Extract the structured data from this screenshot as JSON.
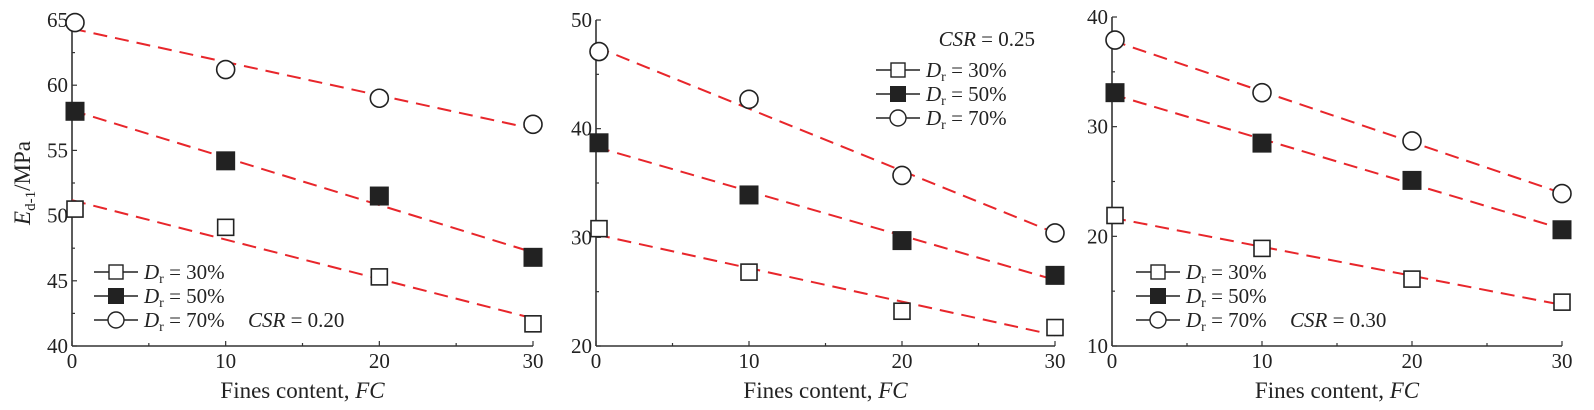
{
  "chart_data": [
    {
      "type": "scatter",
      "title": "CSR = 0.20",
      "xlabel": "Fines content, FC",
      "ylabel": "Ed-1/MPa",
      "xlim": [
        0,
        30
      ],
      "ylim": [
        40,
        65
      ],
      "xticks": [
        0,
        10,
        20,
        30
      ],
      "yticks": [
        40,
        45,
        50,
        55,
        60,
        65
      ],
      "x": [
        0,
        10,
        20,
        30
      ],
      "series": [
        {
          "name": "Dr = 30%",
          "marker": "open-square",
          "values": [
            50.5,
            49.1,
            45.3,
            41.7
          ]
        },
        {
          "name": "Dr = 50%",
          "marker": "filled-square",
          "values": [
            58.0,
            54.2,
            51.5,
            46.8
          ]
        },
        {
          "name": "Dr = 70%",
          "marker": "open-circle",
          "values": [
            64.8,
            61.2,
            59.0,
            57.0
          ]
        }
      ],
      "fit_lines": "red dashed linear fits",
      "legend_position": "lower left",
      "grid": false
    },
    {
      "type": "scatter",
      "title": "CSR = 0.25",
      "xlabel": "Fines content, FC",
      "ylabel": "",
      "xlim": [
        0,
        30
      ],
      "ylim": [
        20,
        50
      ],
      "xticks": [
        0,
        10,
        20,
        30
      ],
      "yticks": [
        20,
        30,
        40,
        50
      ],
      "x": [
        0,
        10,
        20,
        30
      ],
      "series": [
        {
          "name": "Dr = 30%",
          "marker": "open-square",
          "values": [
            30.8,
            26.8,
            23.2,
            21.7
          ]
        },
        {
          "name": "Dr = 50%",
          "marker": "filled-square",
          "values": [
            38.7,
            33.9,
            29.7,
            26.5
          ]
        },
        {
          "name": "Dr = 70%",
          "marker": "open-circle",
          "values": [
            47.1,
            42.7,
            35.7,
            30.4
          ]
        }
      ],
      "fit_lines": "red dashed linear fits",
      "legend_position": "upper right",
      "grid": false
    },
    {
      "type": "scatter",
      "title": "CSR = 0.30",
      "xlabel": "Fines content, FC",
      "ylabel": "",
      "xlim": [
        0,
        30
      ],
      "ylim": [
        10,
        40
      ],
      "xticks": [
        0,
        10,
        20,
        30
      ],
      "yticks": [
        10,
        20,
        30,
        40
      ],
      "x": [
        0,
        10,
        20,
        30
      ],
      "series": [
        {
          "name": "Dr = 30%",
          "marker": "open-square",
          "values": [
            21.9,
            18.9,
            16.1,
            14.0
          ]
        },
        {
          "name": "Dr = 50%",
          "marker": "filled-square",
          "values": [
            33.1,
            28.5,
            25.1,
            20.6
          ]
        },
        {
          "name": "Dr = 70%",
          "marker": "open-circle",
          "values": [
            37.9,
            33.1,
            28.7,
            23.9
          ]
        }
      ],
      "fit_lines": "red dashed linear fits",
      "legend_position": "lower left",
      "grid": false
    }
  ],
  "text": {
    "ylabel_main": "E",
    "ylabel_sub": "d-1",
    "ylabel_unit": "/MPa",
    "xlabel_prefix": "Fines content, ",
    "xlabel_var": "FC",
    "legend_D": "D",
    "legend_r": "r",
    "legend_30": " = 30%",
    "legend_50": " = 50%",
    "legend_70": " = 70%",
    "csr_var": "CSR",
    "csr1": " = 0.20",
    "csr2": " = 0.25",
    "csr3": " = 0.30"
  },
  "colors": {
    "fit_line": "#e8262b",
    "axis": "#333333",
    "marker": "#222222"
  }
}
